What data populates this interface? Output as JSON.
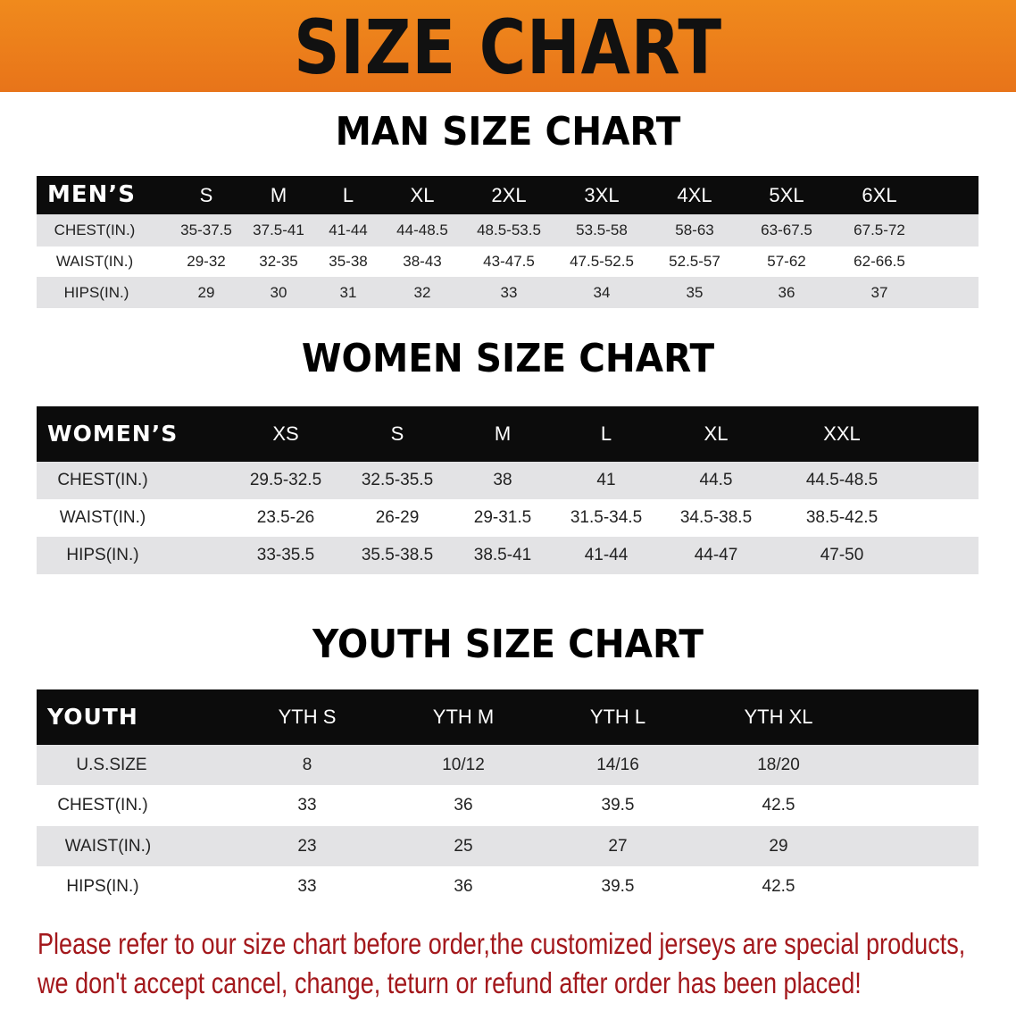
{
  "banner": {
    "title": "SIZE CHART",
    "color": "#ee7f1b"
  },
  "men": {
    "title": "MAN SIZE CHART",
    "header": [
      "MEN’S",
      "S",
      "M",
      "L",
      "XL",
      "2XL",
      "3XL",
      "4XL",
      "5XL",
      "6XL"
    ],
    "rows": [
      [
        "CHEST(IN.)",
        "35-37.5",
        "37.5-41",
        "41-44",
        "44-48.5",
        "48.5-53.5",
        "53.5-58",
        "58-63",
        "63-67.5",
        "67.5-72"
      ],
      [
        "WAIST(IN.)",
        "29-32",
        "32-35",
        "35-38",
        "38-43",
        "43-47.5",
        "47.5-52.5",
        "52.5-57",
        "57-62",
        "62-66.5"
      ],
      [
        "HIPS(IN.)",
        "29",
        "30",
        "31",
        "32",
        "33",
        "34",
        "35",
        "36",
        "37"
      ]
    ]
  },
  "women": {
    "title": "WOMEN SIZE CHART",
    "header": [
      "WOMEN’S",
      "XS",
      "S",
      "M",
      "L",
      "XL",
      "XXL"
    ],
    "rows": [
      [
        "CHEST(IN.)",
        "29.5-32.5",
        "32.5-35.5",
        "38",
        "41",
        "44.5",
        "44.5-48.5"
      ],
      [
        "WAIST(IN.)",
        "23.5-26",
        "26-29",
        "29-31.5",
        "31.5-34.5",
        "34.5-38.5",
        "38.5-42.5"
      ],
      [
        "HIPS(IN.)",
        "33-35.5",
        "35.5-38.5",
        "38.5-41",
        "41-44",
        "44-47",
        "47-50"
      ]
    ]
  },
  "youth": {
    "title": "YOUTH SIZE CHART",
    "header": [
      "YOUTH",
      "YTH S",
      "YTH M",
      "YTH L",
      "YTH XL"
    ],
    "rows": [
      [
        "U.S.SIZE",
        "8",
        "10/12",
        "14/16",
        "18/20"
      ],
      [
        "CHEST(IN.)",
        "33",
        "36",
        "39.5",
        "42.5"
      ],
      [
        "WAIST(IN.)",
        "23",
        "25",
        "27",
        "29"
      ],
      [
        "HIPS(IN.)",
        "33",
        "36",
        "39.5",
        "42.5"
      ]
    ]
  },
  "notice": {
    "line1": "Please refer to our size chart before order,the customized jerseys are special products,",
    "line2": "we don't accept cancel, change, teturn or refund after order has been placed!",
    "color": "#a3181c"
  }
}
